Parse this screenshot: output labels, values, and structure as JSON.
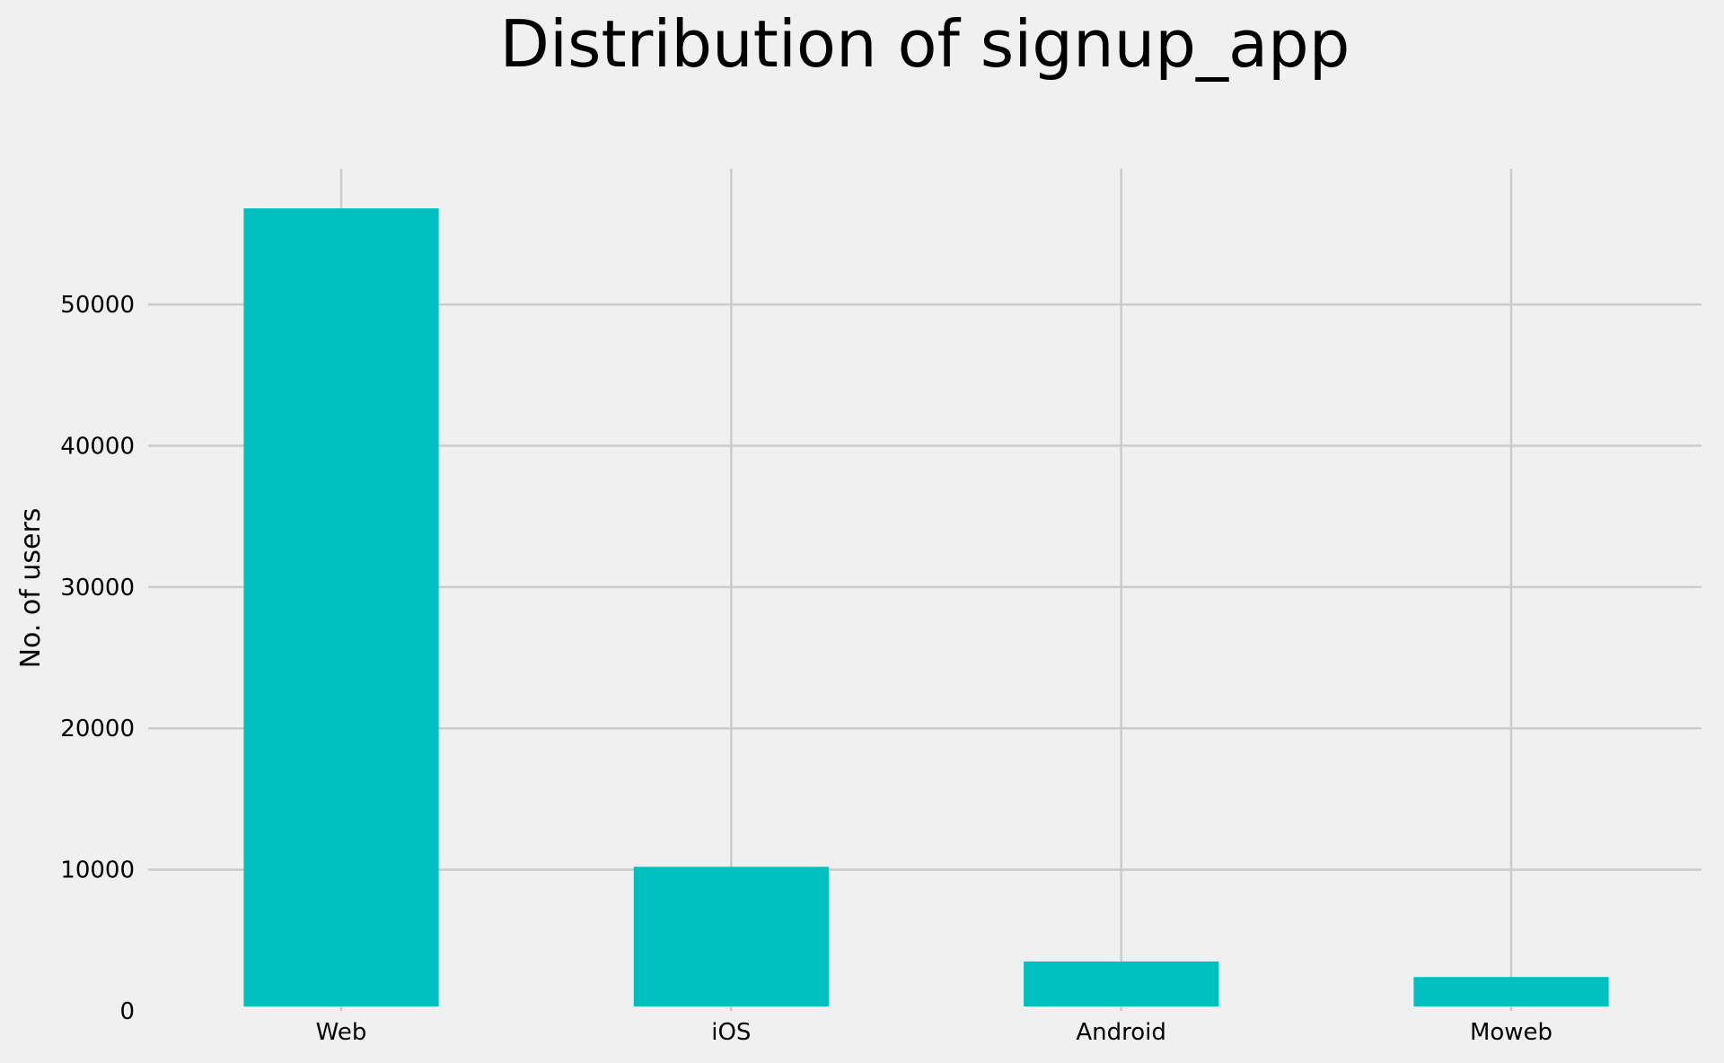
{
  "chart_data": {
    "type": "bar",
    "title": "Distribution of signup_app",
    "xlabel": "",
    "ylabel": "No. of users",
    "categories": [
      "Web",
      "iOS",
      "Android",
      "Moweb"
    ],
    "values": [
      56800,
      10200,
      3500,
      2400
    ],
    "ylim": [
      0,
      59600
    ],
    "yticks": [
      0,
      10000,
      20000,
      30000,
      40000,
      50000
    ],
    "grid": true,
    "bar_color": "#00bfbf",
    "background": "#f0f0f0"
  }
}
